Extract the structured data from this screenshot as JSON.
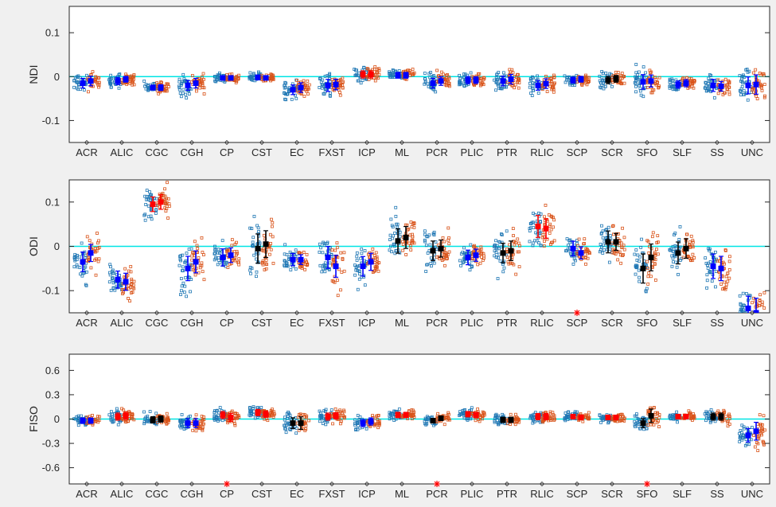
{
  "figure": {
    "background": "#f0f0f0",
    "reference_line_color": "#00e5e5",
    "series_colors": {
      "left_points": "#1f77b4",
      "right_points": "#d95319",
      "mean_default": "#0000ff",
      "mean_black": "#000000",
      "mean_red": "#ff0000",
      "significance_marker": "#ff0000"
    }
  },
  "chart_data": [
    {
      "type": "scatter",
      "ylabel": "NDI",
      "ylim": [
        -0.15,
        0.16
      ],
      "yticks": [
        0.1,
        0,
        -0.1
      ],
      "ytick_labels": [
        "0.1",
        "0",
        "-0.1"
      ],
      "categories": [
        "ACR",
        "ALIC",
        "CGC",
        "CGH",
        "CP",
        "CST",
        "EC",
        "FXST",
        "ICP",
        "ML",
        "PCR",
        "PLIC",
        "PTR",
        "RLIC",
        "SCP",
        "SCR",
        "SFO",
        "SLF",
        "SS",
        "UNC"
      ],
      "grid": false,
      "reference_line": 0,
      "series": [
        {
          "values": [
            -0.015,
            -0.01,
            -0.025,
            -0.02,
            -0.003,
            -0.002,
            -0.03,
            -0.02,
            0.005,
            0.003,
            -0.015,
            -0.008,
            -0.01,
            -0.02,
            -0.008,
            -0.008,
            -0.012,
            -0.018,
            -0.02,
            -0.02
          ],
          "spread": [
            0.02,
            0.015,
            0.01,
            0.02,
            0.008,
            0.01,
            0.02,
            0.025,
            0.015,
            0.012,
            0.02,
            0.015,
            0.02,
            0.02,
            0.012,
            0.015,
            0.03,
            0.015,
            0.025,
            0.035
          ]
        },
        {
          "values": [
            -0.01,
            -0.006,
            -0.025,
            -0.015,
            -0.003,
            -0.003,
            -0.025,
            -0.018,
            0.005,
            0.003,
            -0.01,
            -0.008,
            -0.006,
            -0.016,
            -0.006,
            -0.005,
            -0.01,
            -0.015,
            -0.022,
            -0.018
          ],
          "spread": [
            0.02,
            0.012,
            0.012,
            0.02,
            0.008,
            0.008,
            0.02,
            0.022,
            0.015,
            0.012,
            0.018,
            0.014,
            0.02,
            0.02,
            0.012,
            0.014,
            0.025,
            0.015,
            0.02,
            0.04
          ]
        }
      ],
      "mean_color": [
        "blue",
        "blue",
        "blue",
        "blue",
        "blue",
        "blue",
        "blue",
        "blue",
        "red",
        "blue",
        "blue",
        "blue",
        "blue",
        "blue",
        "blue",
        "black",
        "blue",
        "blue",
        "blue",
        "blue"
      ],
      "significant": []
    },
    {
      "type": "scatter",
      "ylabel": "ODI",
      "ylim": [
        -0.15,
        0.15
      ],
      "yticks": [
        0.1,
        0,
        -0.1
      ],
      "ytick_labels": [
        "0.1",
        "0",
        "-0.1"
      ],
      "categories": [
        "ACR",
        "ALIC",
        "CGC",
        "CGH",
        "CP",
        "CST",
        "EC",
        "FXST",
        "ICP",
        "ML",
        "PCR",
        "PLIC",
        "PTR",
        "RLIC",
        "SCP",
        "SCR",
        "SFO",
        "SLF",
        "SS",
        "UNC"
      ],
      "grid": false,
      "reference_line": 0,
      "series": [
        {
          "values": [
            -0.035,
            -0.075,
            0.095,
            -0.05,
            -0.025,
            -0.005,
            -0.03,
            -0.025,
            -0.045,
            0.012,
            -0.01,
            -0.025,
            -0.015,
            0.045,
            -0.005,
            0.01,
            -0.05,
            -0.015,
            -0.045,
            -0.14
          ],
          "spread": [
            0.04,
            0.035,
            0.03,
            0.05,
            0.035,
            0.06,
            0.025,
            0.045,
            0.04,
            0.05,
            0.04,
            0.03,
            0.04,
            0.045,
            0.03,
            0.045,
            0.06,
            0.045,
            0.05,
            0.05
          ]
        },
        {
          "values": [
            -0.015,
            -0.08,
            0.1,
            -0.035,
            -0.02,
            0.005,
            -0.03,
            -0.045,
            -0.035,
            0.02,
            -0.005,
            -0.02,
            -0.01,
            0.04,
            -0.015,
            0.01,
            -0.025,
            -0.005,
            -0.05,
            -0.15
          ],
          "spread": [
            0.035,
            0.035,
            0.03,
            0.045,
            0.03,
            0.055,
            0.02,
            0.045,
            0.035,
            0.045,
            0.035,
            0.025,
            0.04,
            0.04,
            0.025,
            0.035,
            0.055,
            0.04,
            0.05,
            0.06
          ]
        }
      ],
      "mean_color": [
        "blue",
        "blue",
        "red",
        "blue",
        "blue",
        "black",
        "blue",
        "blue",
        "blue",
        "black",
        "black",
        "blue",
        "black",
        "red",
        "blue",
        "black",
        "black",
        "black",
        "blue",
        "blue"
      ],
      "significant": [
        "SCP"
      ]
    },
    {
      "type": "scatter",
      "ylabel": "FISO",
      "ylim": [
        -0.8,
        0.8
      ],
      "yticks": [
        0.6,
        0.3,
        0,
        -0.3,
        -0.6
      ],
      "ytick_labels": [
        "0.6",
        "0.3",
        "0",
        "-0.3",
        "-0.6"
      ],
      "categories": [
        "ACR",
        "ALIC",
        "CGC",
        "CGH",
        "CP",
        "CST",
        "EC",
        "FXST",
        "ICP",
        "ML",
        "PCR",
        "PLIC",
        "PTR",
        "RLIC",
        "SCP",
        "SCR",
        "SFO",
        "SLF",
        "SS",
        "UNC"
      ],
      "grid": false,
      "reference_line": 0,
      "series": [
        {
          "values": [
            -0.02,
            0.03,
            -0.01,
            -0.05,
            0.05,
            0.08,
            -0.05,
            0.03,
            -0.05,
            0.05,
            -0.02,
            0.06,
            -0.01,
            0.03,
            0.03,
            0.02,
            -0.05,
            0.03,
            0.03,
            -0.2
          ],
          "spread": [
            0.06,
            0.08,
            0.07,
            0.1,
            0.08,
            0.07,
            0.12,
            0.08,
            0.08,
            0.06,
            0.05,
            0.06,
            0.06,
            0.07,
            0.05,
            0.05,
            0.1,
            0.05,
            0.08,
            0.15
          ]
        },
        {
          "values": [
            -0.02,
            0.04,
            0.0,
            -0.05,
            0.02,
            0.06,
            -0.05,
            0.04,
            -0.03,
            0.05,
            0.01,
            0.05,
            -0.01,
            0.03,
            0.02,
            0.02,
            0.04,
            0.03,
            0.03,
            -0.15
          ],
          "spread": [
            0.06,
            0.08,
            0.07,
            0.1,
            0.09,
            0.07,
            0.14,
            0.07,
            0.08,
            0.06,
            0.05,
            0.06,
            0.06,
            0.07,
            0.05,
            0.05,
            0.15,
            0.05,
            0.08,
            0.2
          ]
        }
      ],
      "mean_color": [
        "blue",
        "red",
        "black",
        "blue",
        "red",
        "red",
        "black",
        "red",
        "blue",
        "red",
        "black",
        "red",
        "black",
        "red",
        "red",
        "red",
        "black",
        "red",
        "black",
        "blue"
      ],
      "significant": [
        "CP",
        "PCR",
        "SFO"
      ]
    }
  ]
}
